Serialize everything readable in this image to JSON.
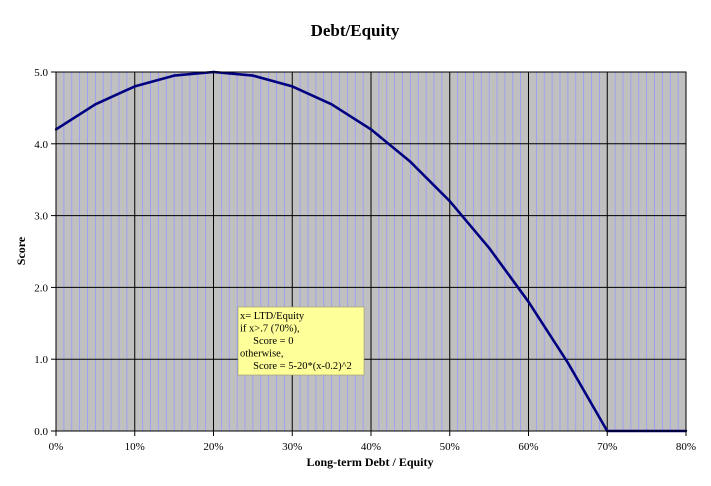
{
  "chart_data": {
    "type": "line",
    "title": "Debt/Equity",
    "xlabel": "Long-term Debt / Equity",
    "ylabel": "Score",
    "xlim": [
      0,
      0.8
    ],
    "ylim": [
      0,
      5
    ],
    "x_ticks": [
      "0%",
      "10%",
      "20%",
      "30%",
      "40%",
      "50%",
      "60%",
      "70%",
      "80%"
    ],
    "y_ticks": [
      "0.0",
      "1.0",
      "2.0",
      "3.0",
      "4.0",
      "5.0"
    ],
    "grid": true,
    "legend": "none",
    "series": [
      {
        "color": "#000080",
        "x": [
          0,
          0.05,
          0.1,
          0.15,
          0.2,
          0.25,
          0.3,
          0.35,
          0.4,
          0.45,
          0.5,
          0.55,
          0.6,
          0.65,
          0.7,
          0.75,
          0.8
        ],
        "y": [
          4.2,
          4.55,
          4.8,
          4.95,
          5.0,
          4.95,
          4.8,
          4.55,
          4.2,
          3.75,
          3.2,
          2.55,
          1.8,
          0.95,
          0.0,
          0.0,
          0.0
        ]
      }
    ],
    "annotation": {
      "lines": [
        "x= LTD/Equity",
        "if x>.7 (70%),",
        "     Score = 0",
        "otherwise,",
        "     Score = 5-20*(x-0.2)^2"
      ]
    },
    "colors": {
      "plot_background": "#c0c0c0",
      "major_grid": "#000000",
      "minor_grid": "#9999ff",
      "annotation_background": "#ffff99"
    }
  }
}
